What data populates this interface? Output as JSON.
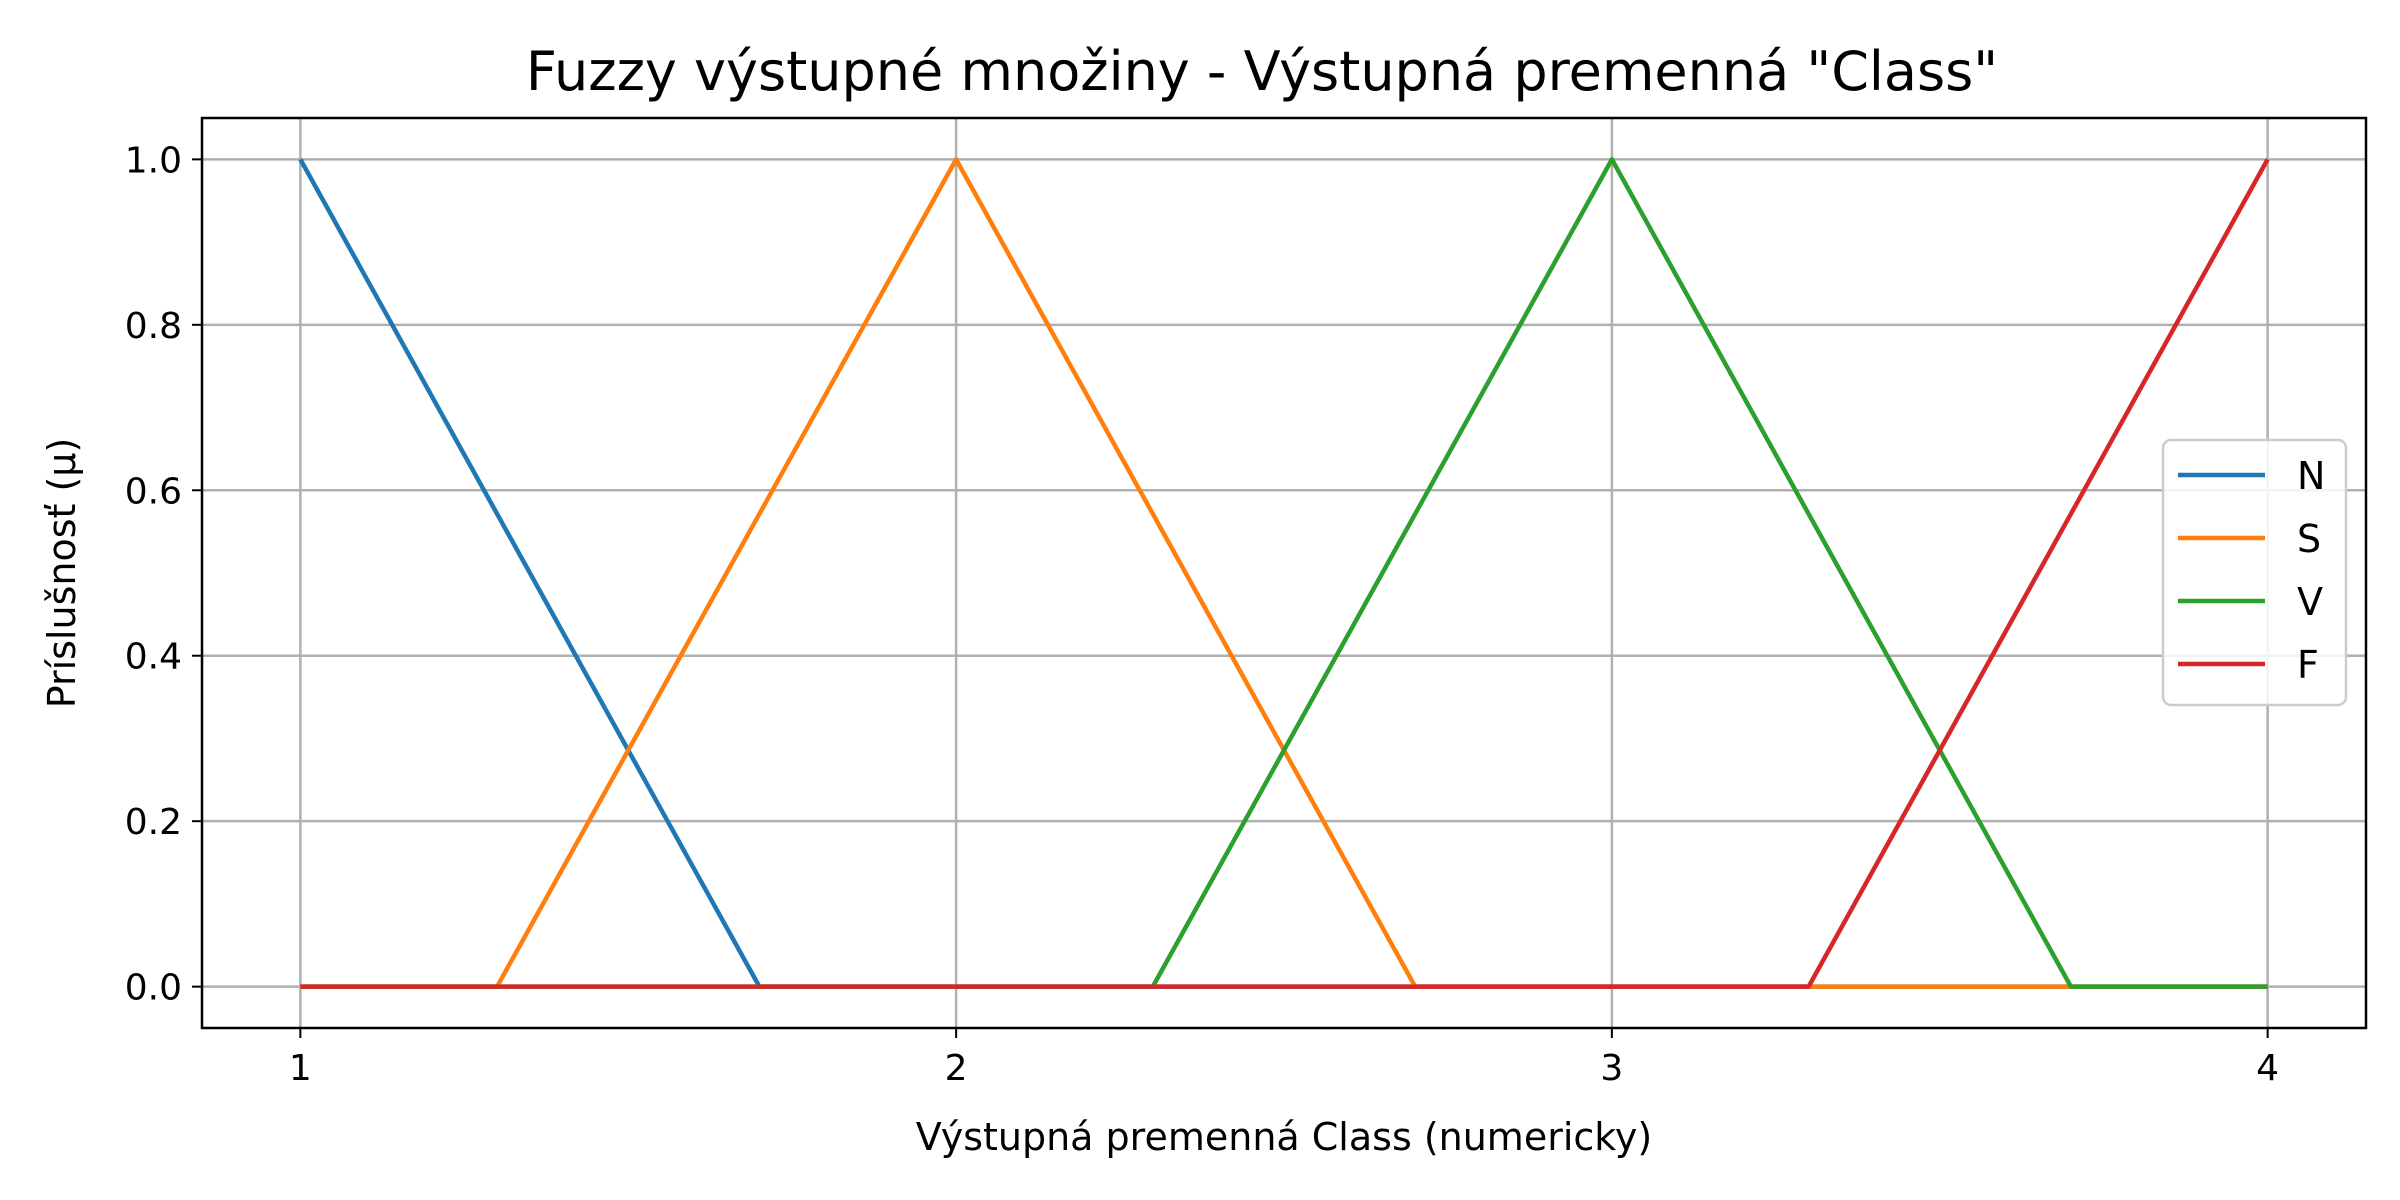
{
  "chart_data": {
    "type": "line",
    "title": "Fuzzy výstupné množiny - Výstupná premenná \"Class\"",
    "xlabel": "Výstupná premenná Class (numericky)",
    "ylabel": "Príslušnosť (μ)",
    "xlim": [
      0.85,
      4.15
    ],
    "ylim": [
      -0.05,
      1.05
    ],
    "xticks": [
      1,
      2,
      3,
      4
    ],
    "xtick_labels": [
      "1",
      "2",
      "3",
      "4"
    ],
    "yticks": [
      0.0,
      0.2,
      0.4,
      0.6,
      0.8,
      1.0
    ],
    "ytick_labels": [
      "0.0",
      "0.2",
      "0.4",
      "0.6",
      "0.8",
      "1.0"
    ],
    "grid": true,
    "legend_position": "center-right",
    "series": [
      {
        "name": "N",
        "color": "#1f77b4",
        "points": [
          [
            1,
            1
          ],
          [
            1.7,
            0
          ],
          [
            4,
            0
          ]
        ]
      },
      {
        "name": "S",
        "color": "#ff7f0e",
        "points": [
          [
            1,
            0
          ],
          [
            1.3,
            0
          ],
          [
            2,
            1
          ],
          [
            2.7,
            0
          ],
          [
            4,
            0
          ]
        ]
      },
      {
        "name": "V",
        "color": "#2ca02c",
        "points": [
          [
            1,
            0
          ],
          [
            2.3,
            0
          ],
          [
            3,
            1
          ],
          [
            3.7,
            0
          ],
          [
            4,
            0
          ]
        ]
      },
      {
        "name": "F",
        "color": "#d62728",
        "points": [
          [
            1,
            0
          ],
          [
            3.3,
            0
          ],
          [
            4,
            1
          ]
        ]
      }
    ]
  }
}
